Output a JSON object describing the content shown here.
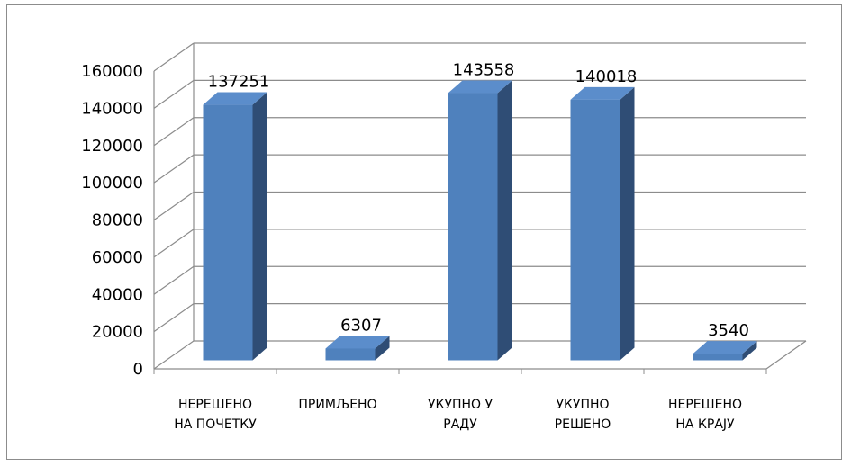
{
  "chart_data": {
    "type": "bar",
    "categories": [
      [
        "НЕРЕШЕНО",
        "НА ПОЧЕТКУ"
      ],
      [
        "ПРИМЉЕНО"
      ],
      [
        "УКУПНО У",
        "РАДУ"
      ],
      [
        "УКУПНО",
        "РЕШЕНО"
      ],
      [
        "НЕРЕШЕНО",
        "НА КРАЈУ"
      ]
    ],
    "values": [
      137251,
      6307,
      143558,
      140018,
      3540
    ],
    "ylim": [
      0,
      160000
    ],
    "yticks": [
      0,
      20000,
      40000,
      60000,
      80000,
      100000,
      120000,
      140000,
      160000
    ],
    "grid": true,
    "style": "3d-column",
    "colors": {
      "front": "#4f81bd",
      "side": "#2f4d75",
      "top": "#5b8dcb",
      "grid": "#8c8c8c"
    }
  }
}
